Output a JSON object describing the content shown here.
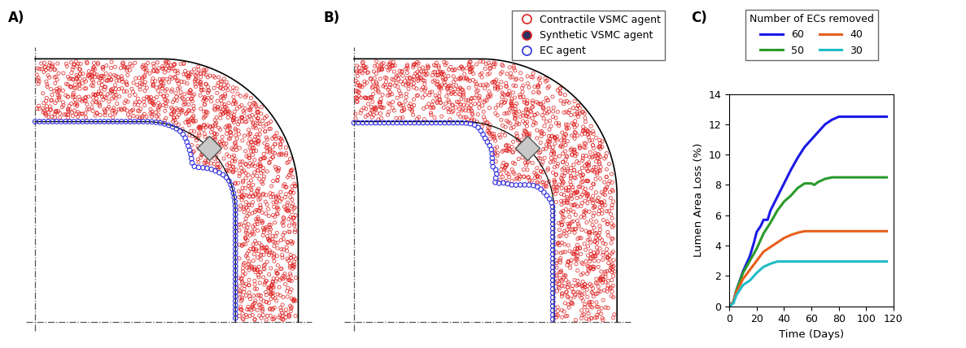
{
  "panel_labels": [
    "A)",
    "B)",
    "C)"
  ],
  "agent_legend": [
    {
      "name": "Contractile VSMC agent",
      "color": "#e02020",
      "marker": "circle"
    },
    {
      "name": "Synthetic VSMC agent",
      "color": "#e02020",
      "marker": "dotted_circle"
    },
    {
      "name": "EC agent",
      "color": "#3030e0",
      "marker": "circle"
    }
  ],
  "chart_data": {
    "type": "line",
    "x_label": "Time (Days)",
    "y_label": "Lumen Area Loss (%)",
    "legend_title": "Number of ECs removed",
    "legend": "upper center",
    "xlim": [
      0,
      120
    ],
    "xticks": [
      0,
      20,
      40,
      60,
      80,
      100,
      120
    ],
    "ylim": [
      0,
      14
    ],
    "yticks": [
      0,
      2,
      4,
      6,
      8,
      10,
      12,
      14
    ],
    "series": [
      {
        "name": "60",
        "color": "#1a1ae6",
        "x": [
          0,
          3,
          5,
          10,
          15,
          18,
          20,
          23,
          25,
          28,
          30,
          35,
          40,
          45,
          50,
          55,
          60,
          65,
          70,
          75,
          80,
          85,
          115
        ],
        "values": [
          0,
          0.3,
          1.0,
          2.3,
          3.3,
          4.2,
          4.9,
          5.3,
          5.7,
          5.7,
          6.3,
          7.2,
          8.1,
          9.0,
          9.8,
          10.5,
          11.0,
          11.5,
          12.0,
          12.3,
          12.5,
          12.5,
          12.5
        ]
      },
      {
        "name": "50",
        "color": "#2a9a2a",
        "x": [
          0,
          3,
          5,
          10,
          15,
          20,
          25,
          30,
          35,
          40,
          45,
          50,
          55,
          60,
          62,
          65,
          70,
          75,
          80,
          85,
          115
        ],
        "values": [
          0,
          0.3,
          1.0,
          2.2,
          3.0,
          3.8,
          4.8,
          5.5,
          6.3,
          6.9,
          7.3,
          7.8,
          8.1,
          8.1,
          8.0,
          8.2,
          8.4,
          8.5,
          8.5,
          8.5,
          8.5
        ]
      },
      {
        "name": "40",
        "color": "#e8601c",
        "x": [
          0,
          3,
          5,
          10,
          15,
          20,
          25,
          30,
          35,
          40,
          45,
          50,
          55,
          58,
          115
        ],
        "values": [
          0,
          0.3,
          0.9,
          1.8,
          2.4,
          3.0,
          3.6,
          3.9,
          4.2,
          4.5,
          4.7,
          4.85,
          4.95,
          4.95,
          4.95
        ]
      },
      {
        "name": "30",
        "color": "#1fbcc8",
        "x": [
          0,
          3,
          5,
          10,
          15,
          20,
          25,
          30,
          35,
          40,
          115
        ],
        "values": [
          0,
          0.2,
          0.7,
          1.4,
          1.7,
          2.2,
          2.6,
          2.8,
          2.95,
          2.95,
          2.95
        ]
      }
    ]
  }
}
